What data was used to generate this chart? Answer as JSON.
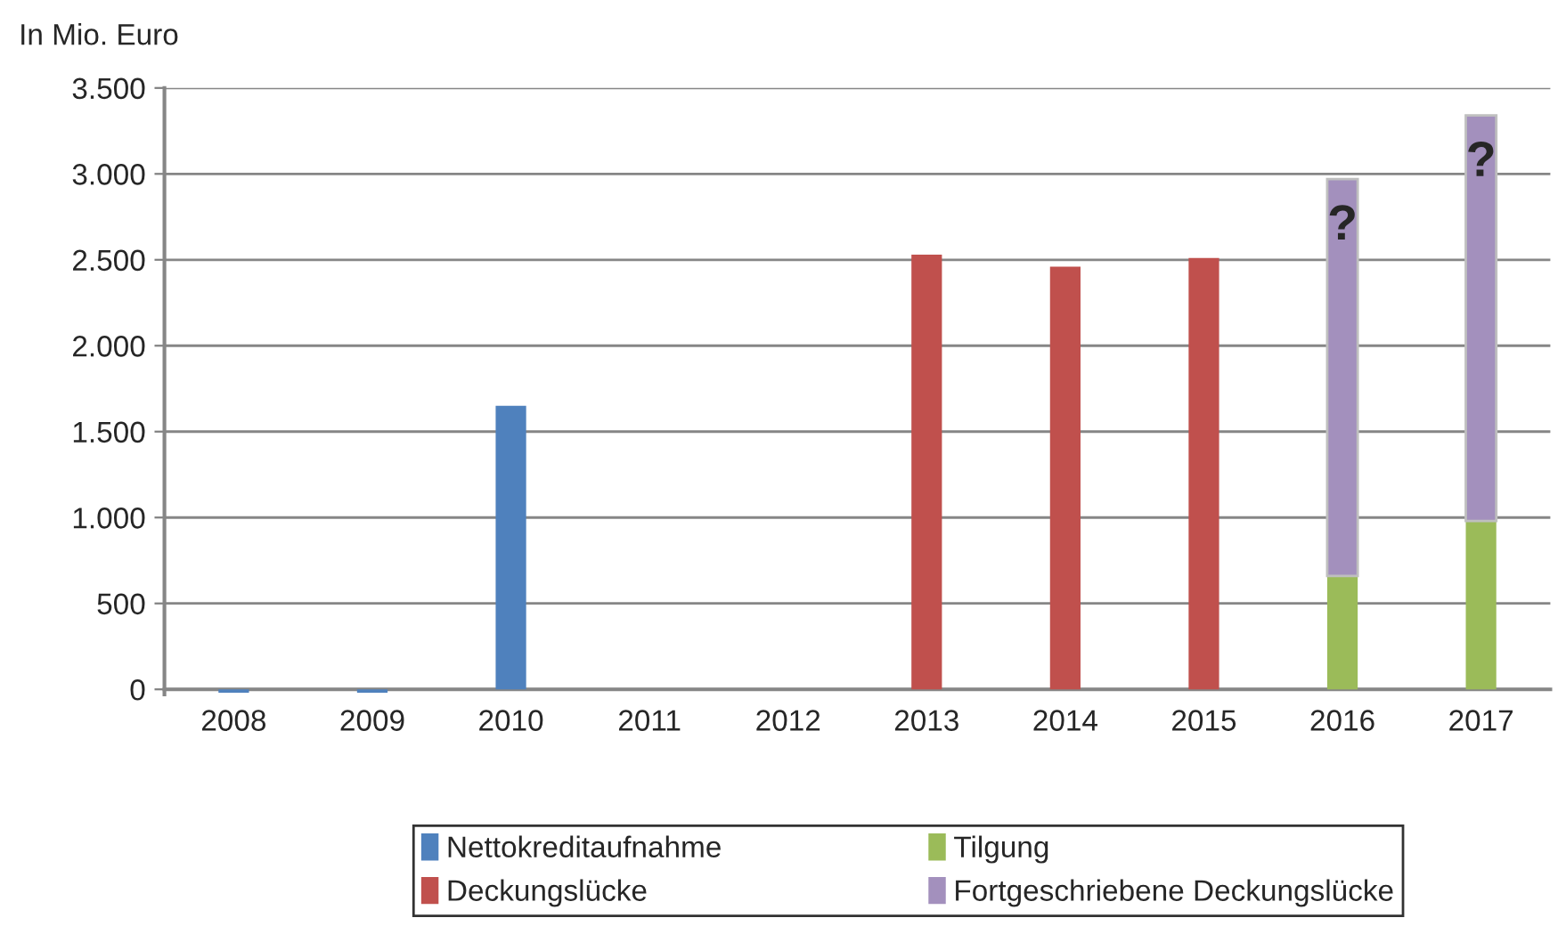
{
  "chart_data": {
    "type": "bar",
    "stacked": true,
    "ylabel": "In Mio. Euro",
    "categories": [
      "2008",
      "2009",
      "2010",
      "2011",
      "2012",
      "2013",
      "2014",
      "2015",
      "2016",
      "2017"
    ],
    "series": [
      {
        "name": "Nettokreditaufnahme",
        "color": "#4f81bd",
        "values": [
          -20,
          -20,
          1650,
          null,
          null,
          null,
          null,
          null,
          null,
          null
        ]
      },
      {
        "name": "Deckungslücke",
        "color": "#c0504d",
        "values": [
          null,
          null,
          null,
          null,
          null,
          2530,
          2460,
          2510,
          null,
          null
        ]
      },
      {
        "name": "Tilgung",
        "color": "#9bbb59",
        "values": [
          null,
          null,
          null,
          null,
          null,
          null,
          null,
          null,
          660,
          980
        ]
      },
      {
        "name": "Fortgeschriebene Deckungslücke",
        "color": "#a390bd",
        "values": [
          null,
          null,
          null,
          null,
          null,
          null,
          null,
          null,
          2310,
          2360
        ]
      }
    ],
    "ylim": [
      -30,
      3500
    ],
    "yticks": [
      {
        "value": 0,
        "label": "0"
      },
      {
        "value": 500,
        "label": "500"
      },
      {
        "value": 1000,
        "label": "1.000"
      },
      {
        "value": 1500,
        "label": "1.500"
      },
      {
        "value": 2000,
        "label": "2.000"
      },
      {
        "value": 2500,
        "label": "2.500"
      },
      {
        "value": 3000,
        "label": "3.000"
      },
      {
        "value": 3500,
        "label": "3.500"
      }
    ],
    "grid": "y",
    "legend": "bottom",
    "annotations": [
      {
        "text": "?",
        "x": "2016",
        "y": 2970
      },
      {
        "text": "?",
        "x": "2017",
        "y": 3340
      }
    ]
  }
}
